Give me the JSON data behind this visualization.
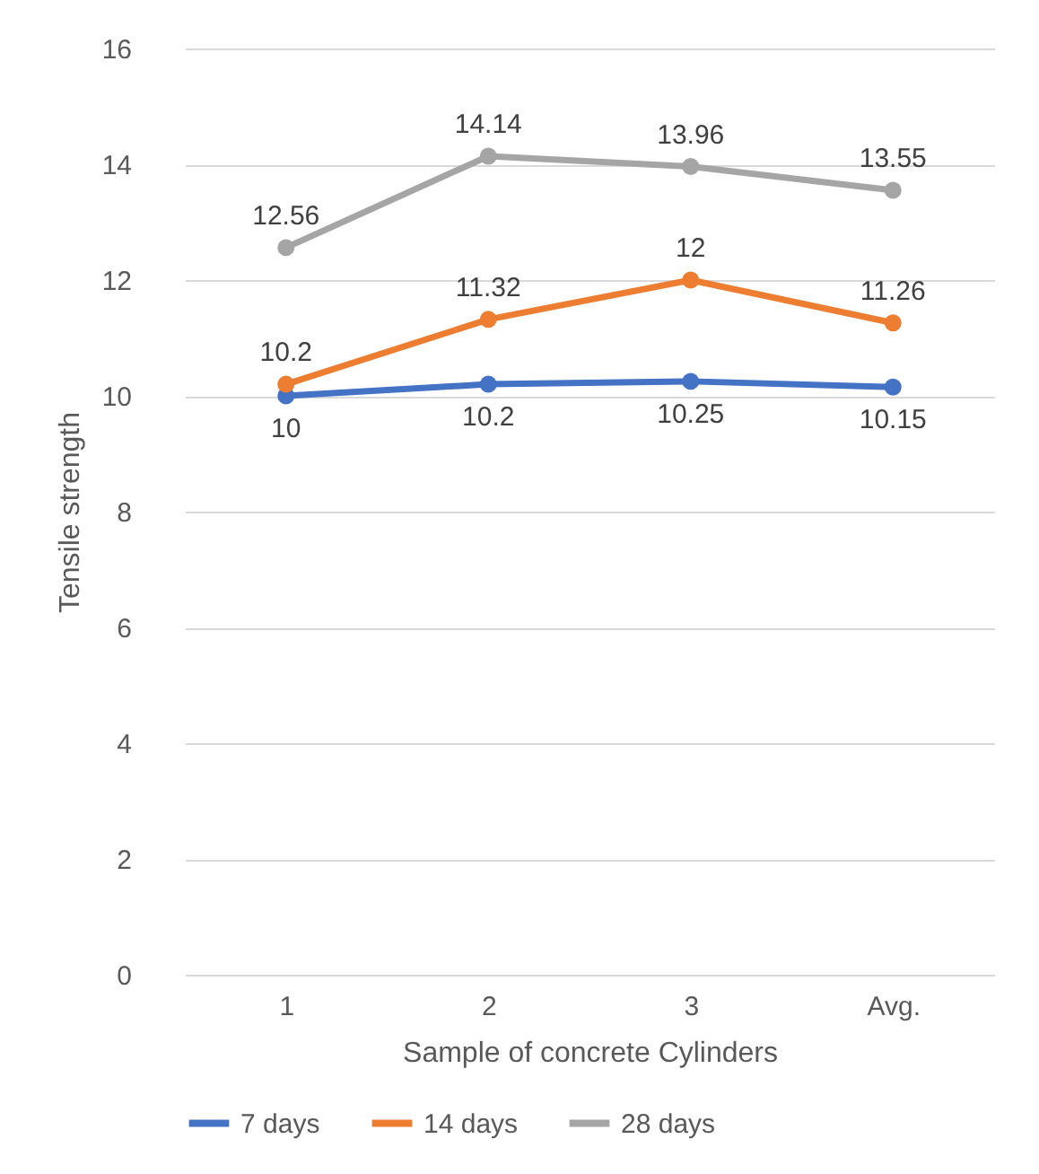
{
  "chart_data": {
    "type": "line",
    "xlabel": "Sample of concrete Cylinders",
    "ylabel": "Tensile strength",
    "categories": [
      "1",
      "2",
      "3",
      "Avg."
    ],
    "series": [
      {
        "name": "7 days",
        "color": "#4472c4",
        "values": [
          10,
          10.2,
          10.25,
          10.15
        ]
      },
      {
        "name": "14 days",
        "color": "#ed7d31",
        "values": [
          10.2,
          11.32,
          12,
          11.26
        ]
      },
      {
        "name": "28 days",
        "color": "#a5a5a5",
        "values": [
          12.56,
          14.14,
          13.96,
          13.55
        ]
      }
    ],
    "ylim": [
      0,
      16
    ],
    "yticks": [
      0,
      2,
      4,
      6,
      8,
      10,
      12,
      14,
      16
    ],
    "grid": "y",
    "legend": "bottom",
    "marker": "circle",
    "data_labels": true
  }
}
